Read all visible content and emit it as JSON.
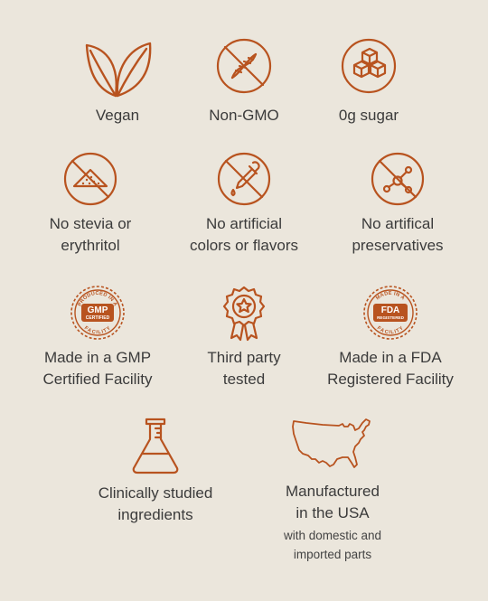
{
  "colors": {
    "accent": "#b8531f",
    "background": "#ebe6dc",
    "text": "#3b3b3b"
  },
  "features": [
    {
      "icon": "leaves-icon",
      "label": "Vegan"
    },
    {
      "icon": "no-dna-icon",
      "label": "Non-GMO"
    },
    {
      "icon": "sugar-cubes-icon",
      "label": "0g sugar"
    },
    {
      "icon": "no-powder-icon",
      "label": "No stevia or\nerythritol"
    },
    {
      "icon": "no-dropper-icon",
      "label": "No artificial\ncolors or flavors"
    },
    {
      "icon": "no-molecule-icon",
      "label": "No artifical\npreservatives"
    },
    {
      "icon": "gmp-badge-icon",
      "label": "Made in a GMP\nCertified Facility",
      "badge": {
        "top": "PRODUCED IN A",
        "main": "GMP",
        "sub": "CERTIFIED",
        "bottom": "FACILITY"
      }
    },
    {
      "icon": "award-ribbon-icon",
      "label": "Third party\ntested"
    },
    {
      "icon": "fda-badge-icon",
      "label": "Made in a FDA\nRegistered Facility",
      "badge": {
        "top": "MADE IN A",
        "main": "FDA",
        "sub": "REGISTERED",
        "bottom": "FACILITY"
      }
    },
    {
      "icon": "flask-icon",
      "label": "Clinically studied\ningredients"
    },
    {
      "icon": "usa-map-icon",
      "label": "Manufactured\nin the USA",
      "sublabel": "with domestic and\nimported parts"
    }
  ]
}
